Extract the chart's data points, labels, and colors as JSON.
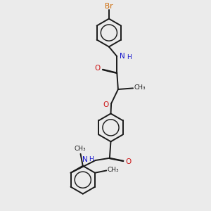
{
  "background_color": "#ebebeb",
  "bond_color": "#1a1a1a",
  "N_color": "#1414cc",
  "O_color": "#cc1414",
  "Br_color": "#cc6600",
  "lw": 1.4,
  "dbo": 0.018,
  "figsize": [
    3.0,
    3.0
  ],
  "dpi": 100,
  "xlim": [
    -2.5,
    2.5
  ],
  "ylim": [
    -4.5,
    4.5
  ]
}
